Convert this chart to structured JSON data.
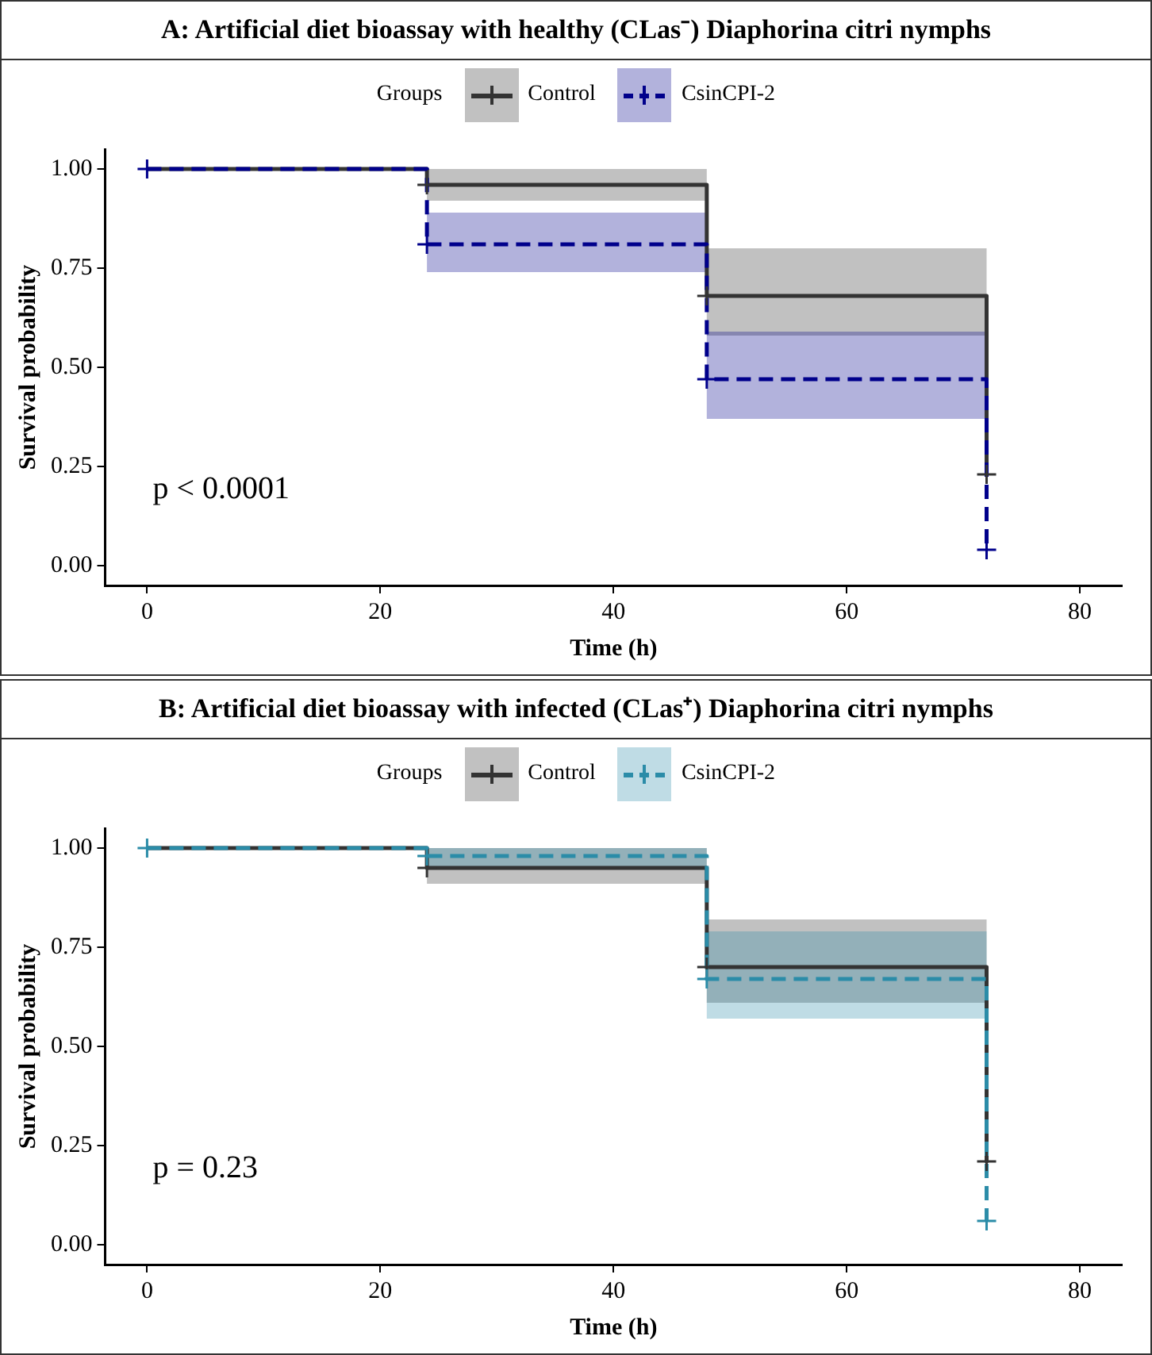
{
  "chart_data": [
    {
      "type": "line",
      "title": "A: Artificial diet bioassay with healthy (CLas⁻) Diaphorina citri nymphs",
      "xlabel": "Time (h)",
      "ylabel": "Survival probability",
      "legend_title": "Groups",
      "legend": "top",
      "grid": false,
      "xlim": [
        -3.6,
        83.6
      ],
      "xticks": [
        0,
        20,
        40,
        60,
        80
      ],
      "ylim": [
        -0.05,
        1.05
      ],
      "yticks": [
        {
          "value": 0,
          "label": "0.00"
        },
        {
          "value": 0.25,
          "label": "0.25"
        },
        {
          "value": 0.5,
          "label": "0.50"
        },
        {
          "value": 0.75,
          "label": "0.75"
        },
        {
          "value": 1,
          "label": "1.00"
        }
      ],
      "x": [
        0,
        24,
        24,
        48,
        48,
        72,
        72
      ],
      "series": [
        {
          "name": "Control",
          "color": "#333333",
          "line_style": "solid",
          "values": [
            1,
            1,
            0.96,
            0.96,
            0.68,
            0.68,
            0.23
          ],
          "lower": [
            null,
            null,
            0.92,
            0.92,
            0.58,
            0.58,
            null
          ],
          "upper": [
            null,
            null,
            1,
            1,
            0.8,
            0.8,
            null
          ]
        },
        {
          "name": "CsinCPI-2",
          "color": "#00008b",
          "line_style": "dashed",
          "values": [
            1,
            1,
            0.81,
            0.81,
            0.47,
            0.47,
            0.04
          ],
          "lower": [
            null,
            null,
            0.74,
            0.74,
            0.37,
            0.37,
            null
          ],
          "upper": [
            null,
            null,
            0.89,
            0.89,
            0.59,
            0.59,
            null
          ]
        },
        {
          "type": "scatter",
          "marker": "cross",
          "color": "#333333",
          "x": [
            24,
            48,
            72
          ],
          "values": [
            0.96,
            0.68,
            0.23
          ]
        },
        {
          "type": "scatter",
          "marker": "cross",
          "color": "#00008b",
          "x": [
            0,
            24,
            48,
            72
          ],
          "values": [
            1,
            0.81,
            0.47,
            0.04
          ]
        }
      ],
      "annotations": [
        "p < 0.0001"
      ]
    },
    {
      "type": "line",
      "title": "B: Artificial diet bioassay with infected (CLas⁺) Diaphorina citri nymphs",
      "xlabel": "Time (h)",
      "ylabel": "Survival probability",
      "legend_title": "Groups",
      "legend": "top",
      "grid": false,
      "xlim": [
        -3.6,
        83.6
      ],
      "xticks": [
        0,
        20,
        40,
        60,
        80
      ],
      "ylim": [
        -0.05,
        1.05
      ],
      "yticks": [
        {
          "value": 0,
          "label": "0.00"
        },
        {
          "value": 0.25,
          "label": "0.25"
        },
        {
          "value": 0.5,
          "label": "0.50"
        },
        {
          "value": 0.75,
          "label": "0.75"
        },
        {
          "value": 1,
          "label": "1.00"
        }
      ],
      "x": [
        0,
        24,
        24,
        48,
        48,
        72,
        72
      ],
      "series": [
        {
          "name": "Control",
          "color": "#333333",
          "line_style": "solid",
          "values": [
            1,
            1,
            0.95,
            0.95,
            0.7,
            0.7,
            0.21
          ],
          "lower": [
            null,
            null,
            0.91,
            0.91,
            0.61,
            0.61,
            null
          ],
          "upper": [
            null,
            null,
            1,
            1,
            0.82,
            0.82,
            null
          ]
        },
        {
          "name": "CsinCPI-2",
          "color": "#2b8ca8",
          "line_style": "dashed",
          "values": [
            1,
            1,
            0.98,
            0.98,
            0.67,
            0.67,
            0.06
          ],
          "lower": [
            null,
            null,
            0.95,
            0.95,
            0.57,
            0.57,
            null
          ],
          "upper": [
            null,
            null,
            1,
            1,
            0.79,
            0.79,
            null
          ]
        },
        {
          "type": "scatter",
          "marker": "cross",
          "color": "#333333",
          "x": [
            24,
            48,
            72
          ],
          "values": [
            0.95,
            0.7,
            0.21
          ]
        },
        {
          "type": "scatter",
          "marker": "cross",
          "color": "#2b8ca8",
          "x": [
            0,
            24,
            48,
            72
          ],
          "values": [
            1,
            0.98,
            0.67,
            0.06
          ]
        }
      ],
      "annotations": [
        "p = 0.23"
      ]
    }
  ]
}
